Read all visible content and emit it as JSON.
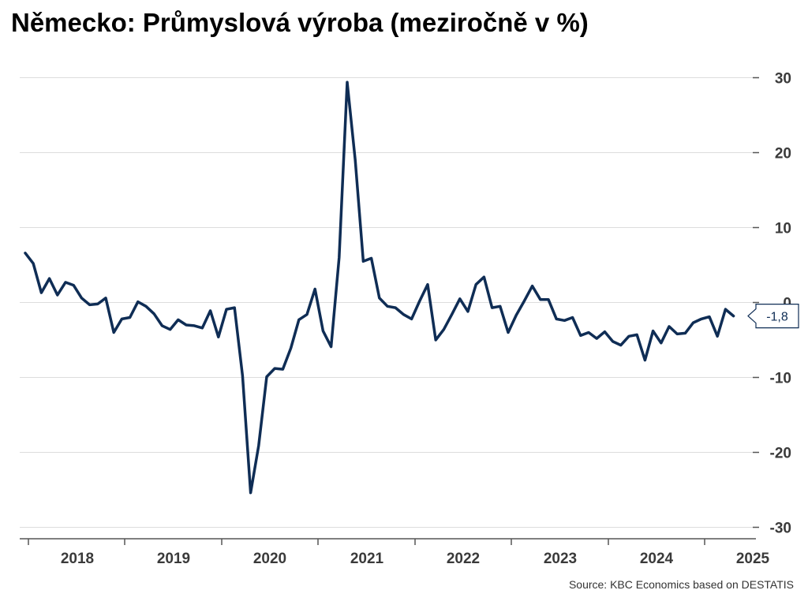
{
  "title": "Německo: Průmyslová výroba (meziročně v %)",
  "source": "Source: KBC Economics based on DESTATIS",
  "last_value_label": "-1,8",
  "colors": {
    "line": "#0f2d55",
    "grid": "#dddddd",
    "axis": "#555555"
  },
  "chart_data": {
    "type": "line",
    "title": "Německo: Průmyslová výroba (meziročně v %)",
    "xlabel": "",
    "ylabel": "",
    "ylim": [
      -32,
      32
    ],
    "y_ticks": [
      30,
      20,
      10,
      0,
      -10,
      -20,
      -30
    ],
    "y_tick_labels": [
      "30",
      "20",
      "10",
      "0",
      "-10",
      "-20",
      "-30"
    ],
    "x_tick_labels": [
      "2018",
      "2019",
      "2020",
      "2021",
      "2022",
      "2023",
      "2024",
      "2025"
    ],
    "grid": true,
    "y_axis_position": "right",
    "series": [
      {
        "values": [
          6.6,
          5.2,
          1.3,
          3.2,
          1.0,
          2.7,
          2.3,
          0.6,
          -0.3,
          -0.2,
          0.6,
          -4.0,
          -2.2,
          -2.0,
          0.1,
          -0.5,
          -1.5,
          -3.1,
          -3.6,
          -2.3,
          -3.0,
          -3.1,
          -3.4,
          -1.1,
          -4.6,
          -0.9,
          -0.7,
          -9.8,
          -25.4,
          -19.1,
          -9.9,
          -8.8,
          -8.9,
          -6.1,
          -2.3,
          -1.6,
          1.8,
          -3.8,
          -5.9,
          6.0,
          29.4,
          19.0,
          5.5,
          5.9,
          0.6,
          -0.5,
          -0.7,
          -1.6,
          -2.2,
          0.2,
          2.4,
          -5.0,
          -3.6,
          -1.6,
          0.5,
          -1.2,
          2.4,
          3.4,
          -0.7,
          -0.5,
          -4.0,
          -1.7,
          0.2,
          2.2,
          0.4,
          0.4,
          -2.2,
          -2.4,
          -2.0,
          -4.4,
          -4.0,
          -4.8,
          -3.9,
          -5.2,
          -5.7,
          -4.5,
          -4.3,
          -7.7,
          -3.8,
          -5.4,
          -3.2,
          -4.2,
          -4.1,
          -2.7,
          -2.2,
          -1.9,
          -4.5,
          -0.9,
          -1.8
        ]
      }
    ]
  }
}
